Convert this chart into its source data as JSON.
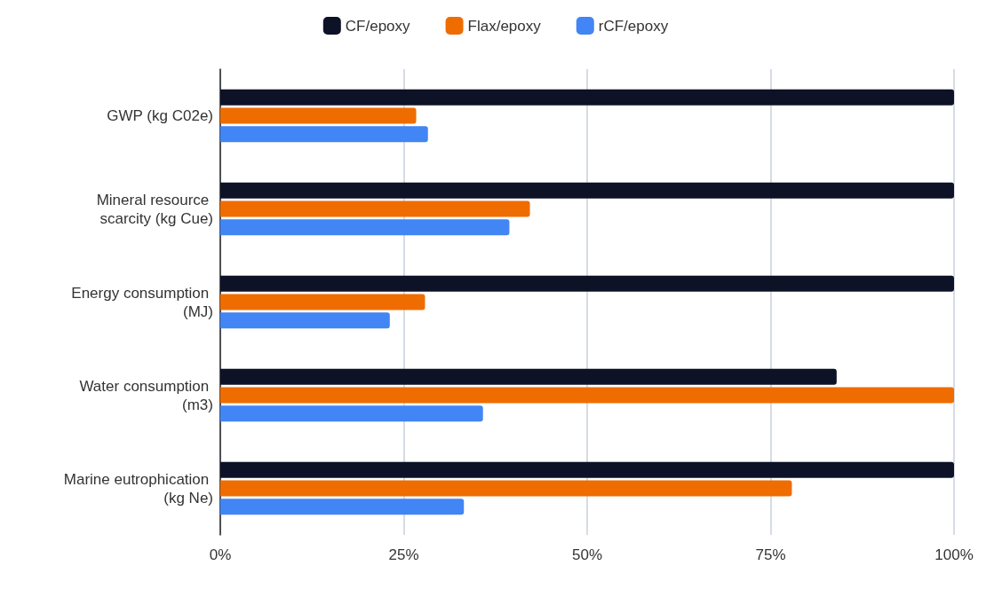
{
  "chart_data": {
    "type": "bar",
    "orientation": "horizontal",
    "categories": [
      "GWP (kg C02e)",
      "Mineral resource scarcity (kg Cue)",
      "Energy consumption (MJ)",
      "Water consumption (m3)",
      "Marine eutrophication (kg Ne)"
    ],
    "series": [
      {
        "name": "CF/epoxy",
        "color": "#0d1226",
        "values": [
          100,
          100,
          100,
          84,
          100
        ]
      },
      {
        "name": "Flax/epoxy",
        "color": "#ef6c00",
        "values": [
          26.7,
          42.2,
          27.9,
          100,
          77.9
        ]
      },
      {
        "name": "rCF/epoxy",
        "color": "#4285f4",
        "values": [
          28.3,
          39.4,
          23.1,
          35.8,
          33.2
        ]
      }
    ],
    "xlim": [
      0,
      100
    ],
    "xticks": [
      {
        "value": 0,
        "label": "0%"
      },
      {
        "value": 25,
        "label": "25%"
      },
      {
        "value": 50,
        "label": "50%"
      },
      {
        "value": 75,
        "label": "75%"
      },
      {
        "value": 100,
        "label": "100%"
      }
    ],
    "grid": "x",
    "legend": "top"
  }
}
